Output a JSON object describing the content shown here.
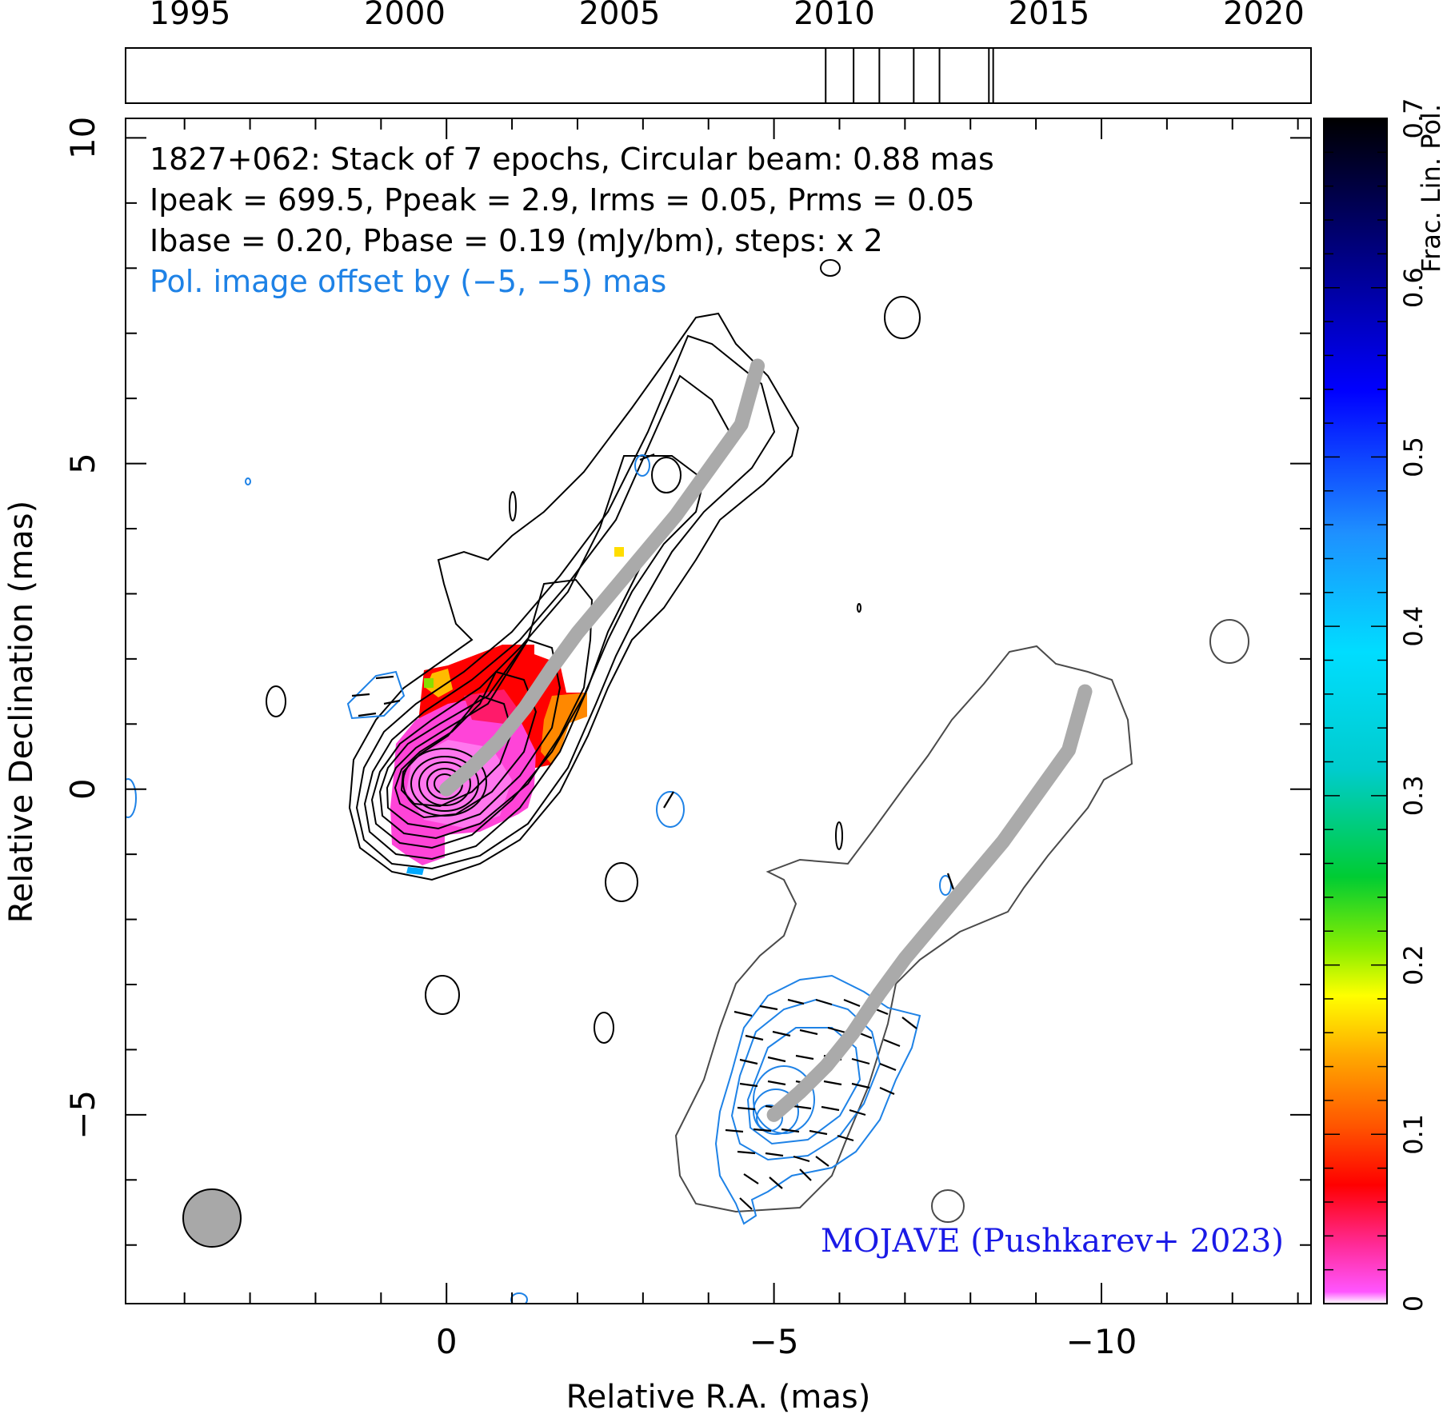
{
  "chart_data": {
    "type": "contour-image",
    "source_name": "1827+062",
    "annotations": {
      "line1": "1827+062: Stack of 7 epochs, Circular beam: 0.88 mas",
      "line2": "Ipeak = 699.5, Ppeak = 2.9, Irms = 0.05, Prms = 0.05",
      "line3": "Ibase = 0.20, Pbase = 0.19 (mJy/bm), steps: x 2",
      "line4": "Pol. image offset by (−5, −5) mas",
      "credit": "MOJAVE (Pushkarev+ 2023)"
    },
    "xlabel": "Relative R.A. (mas)",
    "ylabel": "Relative Declination (mas)",
    "colorbar_label": "Frac. Lin. Pol.",
    "xlim": [
      4.9,
      -13.2
    ],
    "ylim": [
      -7.9,
      10.3
    ],
    "x_ticks": [
      0,
      -5,
      -10
    ],
    "x_tick_labels": [
      "0",
      "−5",
      "−10"
    ],
    "y_ticks": [
      10,
      5,
      0,
      -5
    ],
    "y_tick_labels": [
      "10",
      "5",
      "0",
      "−5"
    ],
    "colorbar_range": [
      0,
      0.7
    ],
    "colorbar_ticks": [
      0,
      0.1,
      0.2,
      0.3,
      0.4,
      0.5,
      0.6,
      0.7
    ],
    "colorbar_tick_labels": [
      "0",
      "0.1",
      "0.2",
      "0.3",
      "0.4",
      "0.5",
      "0.6",
      "0.7"
    ],
    "timeline": {
      "range": [
        1993.5,
        2021.1
      ],
      "tick_years": [
        1995,
        2000,
        2005,
        2010,
        2015,
        2020
      ],
      "tick_labels": [
        "1995",
        "2000",
        "2005",
        "2010",
        "2015",
        "2020"
      ],
      "epochs": [
        2009.8,
        2010.45,
        2011.05,
        2011.85,
        2012.45,
        2013.6,
        2013.7
      ]
    },
    "beam_diameter_mas": 0.88,
    "offset_mas": [
      -5,
      -5
    ],
    "ridgeline": [
      [
        0,
        0
      ],
      [
        -0.4,
        0.35
      ],
      [
        -0.8,
        0.75
      ],
      [
        -1.2,
        1.25
      ],
      [
        -1.6,
        1.85
      ],
      [
        -2.0,
        2.4
      ],
      [
        -2.5,
        3.0
      ],
      [
        -3.0,
        3.6
      ],
      [
        -3.5,
        4.2
      ],
      [
        -4.0,
        4.9
      ],
      [
        -4.5,
        5.6
      ],
      [
        -4.75,
        6.5
      ]
    ],
    "colors": {
      "contour_total": "#000000",
      "contour_total_offset": "#4a4a4a",
      "contour_pol": "#1e82e6",
      "ridgeline": "#aaaaaa",
      "credit": "#1a1ae6",
      "pol_note": "#1e82e6"
    },
    "colormap": [
      "#ffffff",
      "#ff55ff",
      "#ff2a96",
      "#ff0000",
      "#ff6600",
      "#ffaa00",
      "#ffff00",
      "#88ee00",
      "#00cc44",
      "#00dddd",
      "#00aaff",
      "#2266ff",
      "#0000ff",
      "#000088",
      "#000000"
    ]
  }
}
